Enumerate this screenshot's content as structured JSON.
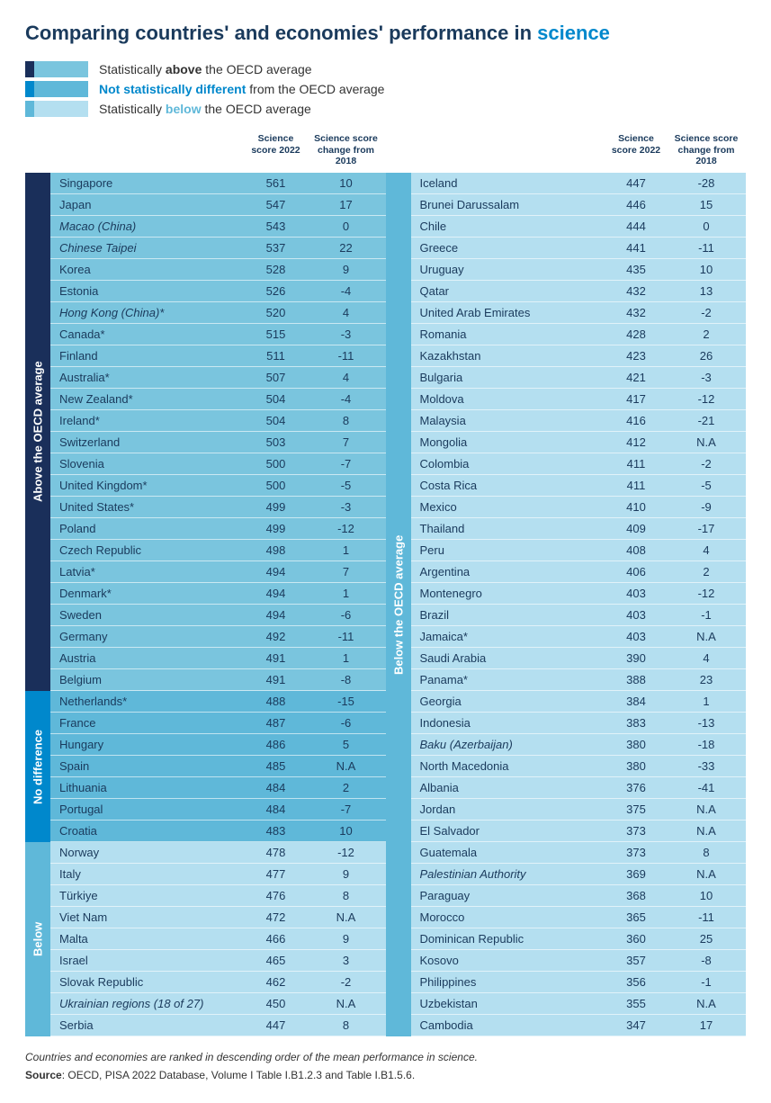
{
  "title_prefix": "Comparing countries' and economies' performance in ",
  "title_accent": "science",
  "colors": {
    "above_side": "#1a2f5a",
    "above_row": "#7ac5de",
    "nodiff_side": "#0088cc",
    "nodiff_row": "#5fb8d9",
    "below_side": "#5fb8d9",
    "below_row": "#b4dff0",
    "text_dark": "#1a3a5c",
    "accent": "#0088cc"
  },
  "legend": [
    {
      "side": "#1a2f5a",
      "row": "#7ac5de",
      "html": "Statistically <strong>above</strong> the OECD average",
      "text_color": "#333"
    },
    {
      "side": "#0088cc",
      "row": "#5fb8d9",
      "html": "<strong style='color:#0088cc'>Not statistically different</strong> from the OECD average",
      "text_color": "#333"
    },
    {
      "side": "#5fb8d9",
      "row": "#b4dff0",
      "html": "Statistically <strong style='color:#5fb8d9'>below</strong> the OECD average",
      "text_color": "#333"
    }
  ],
  "headers": {
    "score": "Science score 2022",
    "change": "Science score change from 2018"
  },
  "left_sections": [
    {
      "label": "Above the OECD average",
      "side_color": "#1a2f5a",
      "row_color": "#7ac5de",
      "rows": [
        {
          "c": "Singapore",
          "s": "561",
          "d": "10"
        },
        {
          "c": "Japan",
          "s": "547",
          "d": "17"
        },
        {
          "c": "Macao (China)",
          "s": "543",
          "d": "0",
          "i": true
        },
        {
          "c": "Chinese Taipei",
          "s": "537",
          "d": "22",
          "i": true
        },
        {
          "c": "Korea",
          "s": "528",
          "d": "9"
        },
        {
          "c": "Estonia",
          "s": "526",
          "d": "-4"
        },
        {
          "c": "Hong Kong (China)*",
          "s": "520",
          "d": "4",
          "i": true
        },
        {
          "c": "Canada*",
          "s": "515",
          "d": "-3"
        },
        {
          "c": "Finland",
          "s": "511",
          "d": "-11"
        },
        {
          "c": "Australia*",
          "s": "507",
          "d": "4"
        },
        {
          "c": "New Zealand*",
          "s": "504",
          "d": "-4"
        },
        {
          "c": "Ireland*",
          "s": "504",
          "d": "8"
        },
        {
          "c": "Switzerland",
          "s": "503",
          "d": "7"
        },
        {
          "c": "Slovenia",
          "s": "500",
          "d": "-7"
        },
        {
          "c": "United Kingdom*",
          "s": "500",
          "d": "-5"
        },
        {
          "c": "United States*",
          "s": "499",
          "d": "-3"
        },
        {
          "c": "Poland",
          "s": "499",
          "d": "-12"
        },
        {
          "c": "Czech Republic",
          "s": "498",
          "d": "1"
        },
        {
          "c": "Latvia*",
          "s": "494",
          "d": "7"
        },
        {
          "c": "Denmark*",
          "s": "494",
          "d": "1"
        },
        {
          "c": "Sweden",
          "s": "494",
          "d": "-6"
        },
        {
          "c": "Germany",
          "s": "492",
          "d": "-11"
        },
        {
          "c": "Austria",
          "s": "491",
          "d": "1"
        },
        {
          "c": "Belgium",
          "s": "491",
          "d": "-8"
        }
      ]
    },
    {
      "label": "No difference",
      "side_color": "#0088cc",
      "row_color": "#5fb8d9",
      "rows": [
        {
          "c": "Netherlands*",
          "s": "488",
          "d": "-15"
        },
        {
          "c": "France",
          "s": "487",
          "d": "-6"
        },
        {
          "c": "Hungary",
          "s": "486",
          "d": "5"
        },
        {
          "c": "Spain",
          "s": "485",
          "d": "N.A"
        },
        {
          "c": "Lithuania",
          "s": "484",
          "d": "2"
        },
        {
          "c": "Portugal",
          "s": "484",
          "d": "-7"
        },
        {
          "c": "Croatia",
          "s": "483",
          "d": "10"
        }
      ]
    },
    {
      "label": "Below",
      "side_color": "#5fb8d9",
      "row_color": "#b4dff0",
      "rows": [
        {
          "c": "Norway",
          "s": "478",
          "d": "-12"
        },
        {
          "c": "Italy",
          "s": "477",
          "d": "9"
        },
        {
          "c": "Türkiye",
          "s": "476",
          "d": "8"
        },
        {
          "c": "Viet Nam",
          "s": "472",
          "d": "N.A"
        },
        {
          "c": "Malta",
          "s": "466",
          "d": "9"
        },
        {
          "c": "Israel",
          "s": "465",
          "d": "3"
        },
        {
          "c": "Slovak Republic",
          "s": "462",
          "d": "-2"
        },
        {
          "c": "Ukrainian regions (18 of 27)",
          "s": "450",
          "d": "N.A",
          "i": true
        },
        {
          "c": "Serbia",
          "s": "447",
          "d": "8"
        }
      ]
    }
  ],
  "right_sections": [
    {
      "label": "Below the OECD average",
      "side_color": "#5fb8d9",
      "row_color": "#b4dff0",
      "rows": [
        {
          "c": "Iceland",
          "s": "447",
          "d": "-28"
        },
        {
          "c": "Brunei Darussalam",
          "s": "446",
          "d": "15"
        },
        {
          "c": "Chile",
          "s": "444",
          "d": "0"
        },
        {
          "c": "Greece",
          "s": "441",
          "d": "-11"
        },
        {
          "c": "Uruguay",
          "s": "435",
          "d": "10"
        },
        {
          "c": "Qatar",
          "s": "432",
          "d": "13"
        },
        {
          "c": "United Arab Emirates",
          "s": "432",
          "d": "-2"
        },
        {
          "c": "Romania",
          "s": "428",
          "d": "2"
        },
        {
          "c": "Kazakhstan",
          "s": "423",
          "d": "26"
        },
        {
          "c": "Bulgaria",
          "s": "421",
          "d": "-3"
        },
        {
          "c": "Moldova",
          "s": "417",
          "d": "-12"
        },
        {
          "c": "Malaysia",
          "s": "416",
          "d": "-21"
        },
        {
          "c": "Mongolia",
          "s": "412",
          "d": "N.A"
        },
        {
          "c": "Colombia",
          "s": "411",
          "d": "-2"
        },
        {
          "c": "Costa Rica",
          "s": "411",
          "d": "-5"
        },
        {
          "c": "Mexico",
          "s": "410",
          "d": "-9"
        },
        {
          "c": "Thailand",
          "s": "409",
          "d": "-17"
        },
        {
          "c": "Peru",
          "s": "408",
          "d": "4"
        },
        {
          "c": "Argentina",
          "s": "406",
          "d": "2"
        },
        {
          "c": "Montenegro",
          "s": "403",
          "d": "-12"
        },
        {
          "c": "Brazil",
          "s": "403",
          "d": "-1"
        },
        {
          "c": "Jamaica*",
          "s": "403",
          "d": "N.A"
        },
        {
          "c": "Saudi Arabia",
          "s": "390",
          "d": "4"
        },
        {
          "c": "Panama*",
          "s": "388",
          "d": "23"
        },
        {
          "c": "Georgia",
          "s": "384",
          "d": "1"
        },
        {
          "c": "Indonesia",
          "s": "383",
          "d": "-13"
        },
        {
          "c": "Baku (Azerbaijan)",
          "s": "380",
          "d": "-18",
          "i": true
        },
        {
          "c": "North Macedonia",
          "s": "380",
          "d": "-33"
        },
        {
          "c": "Albania",
          "s": "376",
          "d": "-41"
        },
        {
          "c": "Jordan",
          "s": "375",
          "d": "N.A"
        },
        {
          "c": "El Salvador",
          "s": "373",
          "d": "N.A"
        },
        {
          "c": "Guatemala",
          "s": "373",
          "d": "8"
        },
        {
          "c": "Palestinian Authority",
          "s": "369",
          "d": "N.A",
          "i": true
        },
        {
          "c": "Paraguay",
          "s": "368",
          "d": "10"
        },
        {
          "c": "Morocco",
          "s": "365",
          "d": "-11"
        },
        {
          "c": "Dominican Republic",
          "s": "360",
          "d": "25"
        },
        {
          "c": "Kosovo",
          "s": "357",
          "d": "-8"
        },
        {
          "c": "Philippines",
          "s": "356",
          "d": "-1"
        },
        {
          "c": "Uzbekistan",
          "s": "355",
          "d": "N.A"
        },
        {
          "c": "Cambodia",
          "s": "347",
          "d": "17"
        }
      ]
    }
  ],
  "footer": {
    "note": "Countries and economies are ranked in descending order of the mean performance in science.",
    "source_label": "Source",
    "source_text": ": OECD, PISA 2022 Database, Volume I Table I.B1.2.3 and Table I.B1.5.6."
  }
}
